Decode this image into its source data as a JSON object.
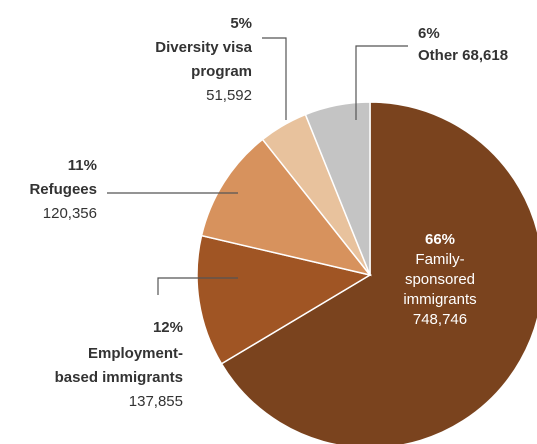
{
  "chart_data": {
    "type": "pie",
    "title": "",
    "slices": [
      {
        "key": "family",
        "pct_label": "66%",
        "name_lines": [
          "Family-",
          "sponsored",
          "immigrants"
        ],
        "value": 748746,
        "value_label": "748,746",
        "share": 66,
        "color": "#7a431e"
      },
      {
        "key": "employment",
        "pct_label": "12%",
        "name_lines": [
          "Employment-",
          "based immigrants"
        ],
        "value": 137855,
        "value_label": "137,855",
        "share": 12,
        "color": "#a05524"
      },
      {
        "key": "refugees",
        "pct_label": "11%",
        "name_lines": [
          "Refugees"
        ],
        "value": 120356,
        "value_label": "120,356",
        "share": 11,
        "color": "#d7925d"
      },
      {
        "key": "diversity",
        "pct_label": "5%",
        "name_lines": [
          "Diversity visa",
          "program"
        ],
        "value": 51592,
        "value_label": "51,592",
        "share": 5,
        "color": "#e8c29d"
      },
      {
        "key": "other",
        "pct_label": "6%",
        "name_lines": [
          "Other"
        ],
        "value": 68618,
        "value_label": "68,618",
        "share": 6,
        "color": "#c4c4c4"
      }
    ]
  }
}
